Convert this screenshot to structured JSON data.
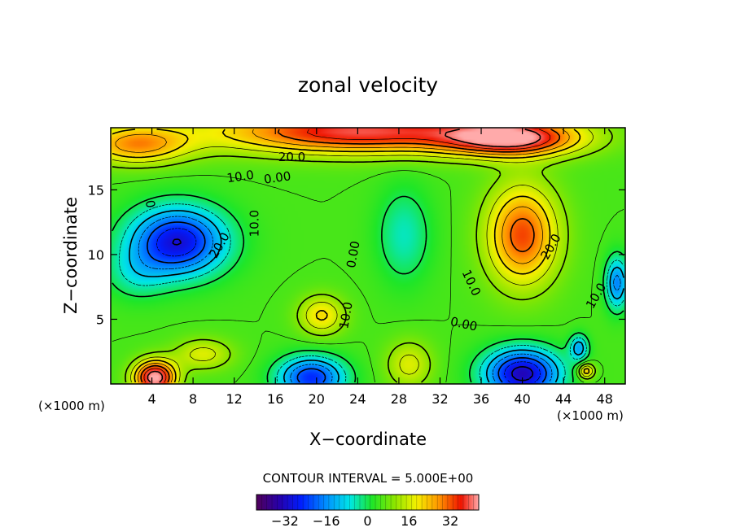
{
  "chart_data": {
    "type": "heatmap",
    "title": "zonal velocity",
    "xlabel": "X−coordinate",
    "ylabel": "Z−coordinate",
    "x_unit_label": "(×1000 m)",
    "x_ticks": [
      4,
      8,
      12,
      16,
      20,
      24,
      28,
      32,
      36,
      40,
      44,
      48
    ],
    "y_ticks": [
      5,
      10,
      15
    ],
    "xlim": [
      0,
      50
    ],
    "ylim": [
      0,
      19.8
    ],
    "contour_interval_text": "CONTOUR INTERVAL = 5.000E+00",
    "colorbar": {
      "range": [
        -43,
        43
      ],
      "ticks": [
        -32,
        -16,
        0,
        16,
        32
      ],
      "tick_labels": [
        "−32",
        "−16",
        "0",
        "16",
        "32"
      ]
    },
    "contour_labels": [
      {
        "text": "20.0",
        "x": 17.6,
        "z": 17.5,
        "rot": 0
      },
      {
        "text": "10.0",
        "x": 12.6,
        "z": 16.0,
        "rot": -8
      },
      {
        "text": "0.00",
        "x": 16.2,
        "z": 15.9,
        "rot": -8
      },
      {
        "text": "10.0",
        "x": 14.0,
        "z": 12.4,
        "rot": -90
      },
      {
        "text": "20.0",
        "x": 10.6,
        "z": 10.7,
        "rot": -60
      },
      {
        "text": "0",
        "x": 3.8,
        "z": 13.9,
        "rot": 80
      },
      {
        "text": "0.00",
        "x": 23.6,
        "z": 10.0,
        "rot": -80
      },
      {
        "text": "10.0",
        "x": 22.9,
        "z": 5.3,
        "rot": -80
      },
      {
        "text": "20.0",
        "x": 42.8,
        "z": 10.6,
        "rot": -60
      },
      {
        "text": "10.0",
        "x": 35.0,
        "z": 7.8,
        "rot": 65
      },
      {
        "text": "0.00",
        "x": 34.3,
        "z": 4.6,
        "rot": 12
      },
      {
        "text": "10.0",
        "x": 47.2,
        "z": 6.8,
        "rot": -60
      }
    ],
    "velocity_features": [
      {
        "x": 6.5,
        "z": 11.0,
        "value": -35,
        "sx": 4.6,
        "sz": 2.6
      },
      {
        "x": 2.5,
        "z": 8.5,
        "value": -8,
        "sx": 3.0,
        "sz": 2.0
      },
      {
        "x": 19.5,
        "z": 0.5,
        "value": -30,
        "sx": 3.2,
        "sz": 1.6
      },
      {
        "x": 40.0,
        "z": 0.8,
        "value": -38,
        "sx": 3.6,
        "sz": 1.9
      },
      {
        "x": 45.5,
        "z": 2.8,
        "value": -18,
        "sx": 0.9,
        "sz": 1.0
      },
      {
        "x": 49.2,
        "z": 7.8,
        "value": -22,
        "sx": 1.1,
        "sz": 2.0
      },
      {
        "x": 28.5,
        "z": 11.5,
        "value": -10,
        "sx": 2.6,
        "sz": 3.6
      },
      {
        "x": 4.3,
        "z": 0.5,
        "value": 40,
        "sx": 2.0,
        "sz": 1.3
      },
      {
        "x": 24.0,
        "z": 19.5,
        "value": 34,
        "sx": 14.0,
        "sz": 1.7
      },
      {
        "x": 39.0,
        "z": 19.0,
        "value": 34,
        "sx": 6.5,
        "sz": 1.4
      },
      {
        "x": 2.5,
        "z": 18.5,
        "value": 22,
        "sx": 5.0,
        "sz": 1.5
      },
      {
        "x": 40.0,
        "z": 11.5,
        "value": 28,
        "sx": 3.4,
        "sz": 3.8
      },
      {
        "x": 20.5,
        "z": 5.3,
        "value": 16,
        "sx": 2.2,
        "sz": 1.5
      },
      {
        "x": 9.0,
        "z": 2.3,
        "value": 12,
        "sx": 2.8,
        "sz": 1.2
      },
      {
        "x": 29.0,
        "z": 1.5,
        "value": 12,
        "sx": 2.2,
        "sz": 1.8
      },
      {
        "x": 46.2,
        "z": 1.0,
        "value": 20,
        "sx": 0.8,
        "sz": 0.6
      }
    ],
    "background_value": 5,
    "grid": false,
    "legend": "bottom-center colorbar"
  }
}
